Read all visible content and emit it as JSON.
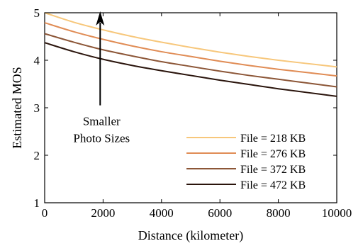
{
  "chart_data": {
    "type": "line",
    "xlabel": "Distance (kilometer)",
    "ylabel": "Estimated MOS",
    "xlim": [
      0,
      10000
    ],
    "ylim": [
      1,
      5
    ],
    "xticks": [
      0,
      2000,
      4000,
      6000,
      8000,
      10000
    ],
    "yticks": [
      1,
      2,
      3,
      4,
      5
    ],
    "grid": false,
    "legend_position": "bottom-right",
    "x": [
      0,
      1000,
      2000,
      3000,
      4000,
      5000,
      6000,
      7000,
      8000,
      9000,
      10000
    ],
    "series": [
      {
        "name": "File = 218 KB",
        "color": "#f7c77b",
        "values": [
          5.0,
          4.8,
          4.64,
          4.5,
          4.38,
          4.27,
          4.17,
          4.08,
          4.0,
          3.93,
          3.86
        ]
      },
      {
        "name": "File = 276 KB",
        "color": "#e08c55",
        "values": [
          4.79,
          4.6,
          4.44,
          4.3,
          4.18,
          4.08,
          3.98,
          3.89,
          3.81,
          3.74,
          3.67
        ]
      },
      {
        "name": "File = 372 KB",
        "color": "#8c5637",
        "values": [
          4.56,
          4.38,
          4.22,
          4.09,
          3.97,
          3.87,
          3.77,
          3.68,
          3.6,
          3.52,
          3.44
        ]
      },
      {
        "name": "File = 472 KB",
        "color": "#2a140c",
        "values": [
          4.37,
          4.18,
          4.02,
          3.89,
          3.78,
          3.68,
          3.58,
          3.49,
          3.4,
          3.32,
          3.24
        ]
      }
    ],
    "annotations": [
      {
        "text": "Smaller",
        "text2": "Photo Sizes",
        "arrow_x": 1900,
        "arrow_from_y": 3.05,
        "arrow_to_y": 5.0
      }
    ]
  }
}
